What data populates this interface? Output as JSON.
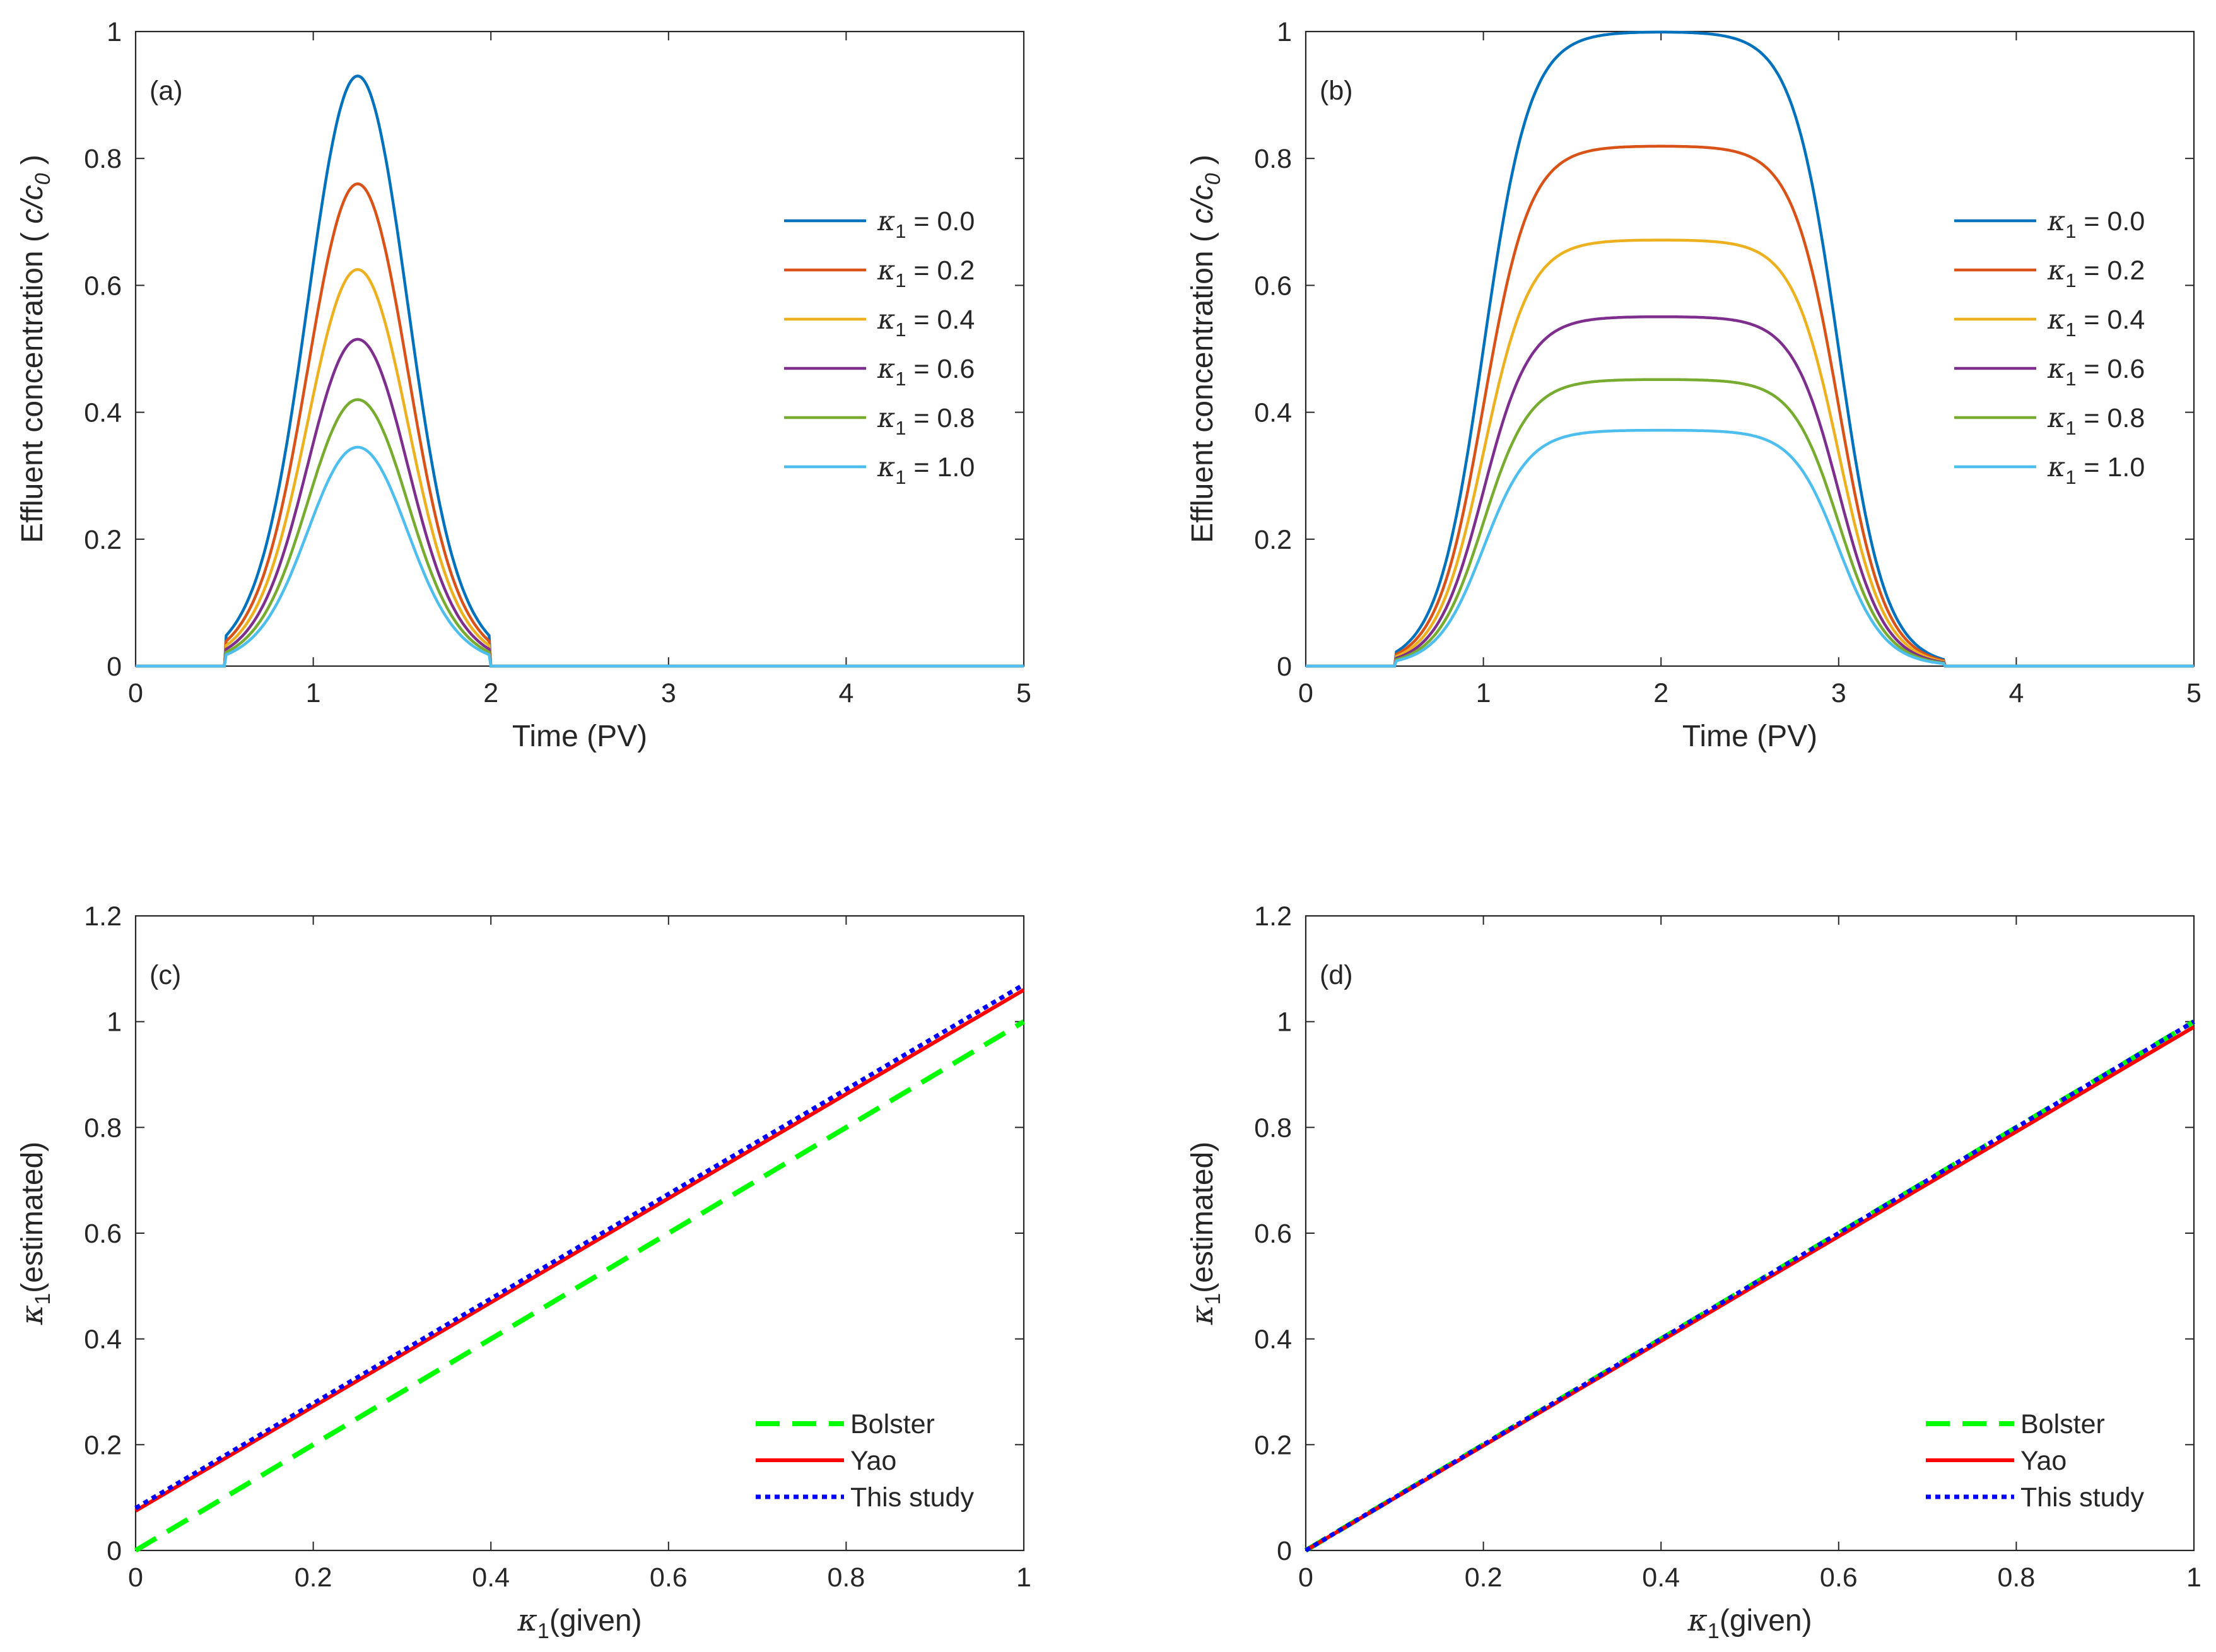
{
  "colors": {
    "k0": "#0072BD",
    "k2": "#D95319",
    "k4": "#EDB120",
    "k6": "#7E2F8E",
    "k8": "#77AC30",
    "k10": "#4DBEEE",
    "bolster": "#00FF00",
    "yao": "#FF0000",
    "this_study": "#0000FF",
    "axis": "#262626"
  },
  "chart_data": [
    {
      "id": "a",
      "type": "line",
      "panel_label": "(a)",
      "xlabel": "Time (PV)",
      "ylabel_prefix": "Effluent concentration ( ",
      "ylabel_var": "c/c",
      "ylabel_sub": "0",
      "ylabel_suffix": " )",
      "xlim": [
        0,
        5
      ],
      "ylim": [
        0,
        1
      ],
      "xticks": [
        "0",
        "1",
        "2",
        "3",
        "4",
        "5"
      ],
      "yticks": [
        "0",
        "0.2",
        "0.4",
        "0.6",
        "0.8",
        "1"
      ],
      "pulse": {
        "start": 0.5,
        "end": 2.0,
        "rise_center": 1.0,
        "fall_center": 1.5,
        "width": 0.15
      },
      "legend_position": "right",
      "series": [
        {
          "label": "κ",
          "sub": "1",
          "value_text": " = 0.0",
          "peak": 0.93,
          "color": "#0072BD"
        },
        {
          "label": "κ",
          "sub": "1",
          "value_text": " = 0.2",
          "peak": 0.76,
          "color": "#D95319"
        },
        {
          "label": "κ",
          "sub": "1",
          "value_text": " = 0.4",
          "peak": 0.625,
          "color": "#EDB120"
        },
        {
          "label": "κ",
          "sub": "1",
          "value_text": " = 0.6",
          "peak": 0.515,
          "color": "#7E2F8E"
        },
        {
          "label": "κ",
          "sub": "1",
          "value_text": " = 0.8",
          "peak": 0.42,
          "color": "#77AC30"
        },
        {
          "label": "κ",
          "sub": "1",
          "value_text": " = 1.0",
          "peak": 0.345,
          "color": "#4DBEEE"
        }
      ]
    },
    {
      "id": "b",
      "type": "line",
      "panel_label": "(b)",
      "xlabel": "Time (PV)",
      "ylabel_prefix": "Effluent concentration ( ",
      "ylabel_var": "c/c",
      "ylabel_sub": "0",
      "ylabel_suffix": " )",
      "xlim": [
        0,
        5
      ],
      "ylim": [
        0,
        1
      ],
      "xticks": [
        "0",
        "1",
        "2",
        "3",
        "4",
        "5"
      ],
      "yticks": [
        "0",
        "0.2",
        "0.4",
        "0.6",
        "0.8",
        "1"
      ],
      "pulse": {
        "start": 0.5,
        "end": 3.6,
        "rise_center": 1.0,
        "fall_center": 3.0,
        "width": 0.13
      },
      "legend_position": "right",
      "series": [
        {
          "label": "κ",
          "sub": "1",
          "value_text": " = 0.0",
          "peak": 1.0,
          "color": "#0072BD"
        },
        {
          "label": "κ",
          "sub": "1",
          "value_text": " = 0.2",
          "peak": 0.82,
          "color": "#D95319"
        },
        {
          "label": "κ",
          "sub": "1",
          "value_text": " = 0.4",
          "peak": 0.672,
          "color": "#EDB120"
        },
        {
          "label": "κ",
          "sub": "1",
          "value_text": " = 0.6",
          "peak": 0.551,
          "color": "#7E2F8E"
        },
        {
          "label": "κ",
          "sub": "1",
          "value_text": " = 0.8",
          "peak": 0.452,
          "color": "#77AC30"
        },
        {
          "label": "κ",
          "sub": "1",
          "value_text": " = 1.0",
          "peak": 0.372,
          "color": "#4DBEEE"
        }
      ]
    },
    {
      "id": "c",
      "type": "line",
      "panel_label": "(c)",
      "xlabel_var": "κ",
      "xlabel_sub": "1",
      "xlabel_suffix": "(given)",
      "ylabel_var": "κ",
      "ylabel_sub": "1",
      "ylabel_suffix": "(estimated)",
      "xlim": [
        0,
        1
      ],
      "ylim": [
        0,
        1.2
      ],
      "xticks": [
        "0",
        "0.2",
        "0.4",
        "0.6",
        "0.8",
        "1"
      ],
      "yticks": [
        "0",
        "0.2",
        "0.4",
        "0.6",
        "0.8",
        "1",
        "1.2"
      ],
      "legend_position": "bottom-right",
      "series": [
        {
          "name": "Bolster",
          "style": "dashed",
          "x": [
            0,
            1
          ],
          "y": [
            0,
            1.0
          ],
          "color": "#00FF00"
        },
        {
          "name": "Yao",
          "style": "solid",
          "x": [
            0,
            1
          ],
          "y": [
            0.075,
            1.06
          ],
          "color": "#FF0000"
        },
        {
          "name": "This study",
          "style": "dotted",
          "x": [
            0,
            1
          ],
          "y": [
            0.08,
            1.07
          ],
          "color": "#0000FF"
        }
      ]
    },
    {
      "id": "d",
      "type": "line",
      "panel_label": "(d)",
      "xlabel_var": "κ",
      "xlabel_sub": "1",
      "xlabel_suffix": "(given)",
      "ylabel_var": "κ",
      "ylabel_sub": "1",
      "ylabel_suffix": "(estimated)",
      "xlim": [
        0,
        1
      ],
      "ylim": [
        0,
        1.2
      ],
      "xticks": [
        "0",
        "0.2",
        "0.4",
        "0.6",
        "0.8",
        "1"
      ],
      "yticks": [
        "0",
        "0.2",
        "0.4",
        "0.6",
        "0.8",
        "1",
        "1.2"
      ],
      "legend_position": "bottom-right",
      "series": [
        {
          "name": "Bolster",
          "style": "dashed",
          "x": [
            0,
            1
          ],
          "y": [
            0,
            1.0
          ],
          "color": "#00FF00"
        },
        {
          "name": "Yao",
          "style": "solid",
          "x": [
            0,
            1
          ],
          "y": [
            0,
            0.99
          ],
          "color": "#FF0000"
        },
        {
          "name": "This study",
          "style": "dotted",
          "x": [
            0,
            1
          ],
          "y": [
            0,
            1.0
          ],
          "color": "#0000FF"
        }
      ]
    }
  ]
}
